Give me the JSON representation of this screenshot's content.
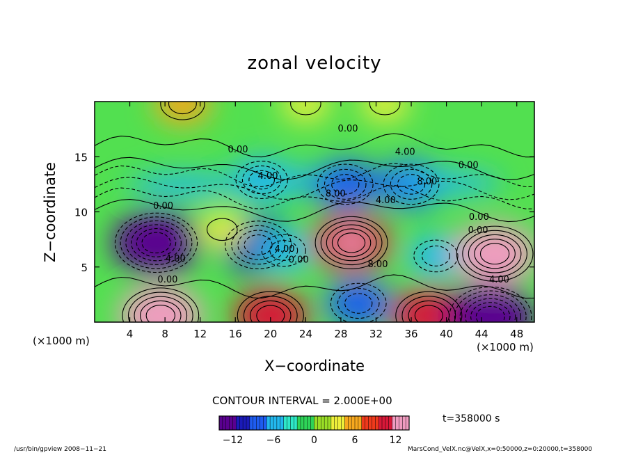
{
  "chart_data": {
    "type": "contour",
    "title": "zonal velocity",
    "xlabel": "X−coordinate",
    "ylabel": "Z−coordinate",
    "x_unit_left": "(×1000 m)",
    "x_unit_right": "(×1000 m)",
    "xlim": [
      0,
      50
    ],
    "ylim": [
      0,
      20
    ],
    "x_ticks": [
      4,
      8,
      12,
      16,
      20,
      24,
      28,
      32,
      36,
      40,
      44,
      48
    ],
    "y_ticks": [
      5,
      10,
      15
    ],
    "contour_interval_text": "CONTOUR INTERVAL = 2.000E+00",
    "contour_interval": 2.0,
    "colorbar": {
      "range": [
        -14,
        14
      ],
      "ticks": [
        -12,
        -6,
        0,
        6,
        12
      ],
      "tick_labels": [
        "−12",
        "−6",
        "0",
        "6",
        "12"
      ],
      "colors": [
        "#5a0090",
        "#1a1ab8",
        "#1e5cf0",
        "#22b8ee",
        "#2ee8c8",
        "#2ed458",
        "#9ade26",
        "#eef03a",
        "#f7a81e",
        "#ef3a1c",
        "#d81838",
        "#f09cc0"
      ]
    },
    "contour_labels": [
      {
        "text": "0.00",
        "x": 28.8,
        "z": 17.6
      },
      {
        "text": "0.00",
        "x": 16.3,
        "z": 15.7
      },
      {
        "text": "4.00",
        "x": 35.3,
        "z": 15.5
      },
      {
        "text": "0.00",
        "x": 42.5,
        "z": 14.3
      },
      {
        "text": "4.00",
        "x": 19.7,
        "z": 13.3
      },
      {
        "text": "8.00",
        "x": 37.8,
        "z": 12.8
      },
      {
        "text": "8.00",
        "x": 27.4,
        "z": 11.7
      },
      {
        "text": "4.00",
        "x": 33.1,
        "z": 11.1
      },
      {
        "text": "0.00",
        "x": 7.8,
        "z": 10.6
      },
      {
        "text": "0.00",
        "x": 43.7,
        "z": 9.6
      },
      {
        "text": "0.00",
        "x": 43.6,
        "z": 8.4
      },
      {
        "text": "4.00",
        "x": 21.6,
        "z": 6.7
      },
      {
        "text": "8.00",
        "x": 32.2,
        "z": 5.3
      },
      {
        "text": "4.00",
        "x": 9.2,
        "z": 5.8
      },
      {
        "text": "0.00",
        "x": 23.2,
        "z": 5.7
      },
      {
        "text": "0.00",
        "x": 8.3,
        "z": 3.9
      },
      {
        "text": "4.00",
        "x": 46.0,
        "z": 3.9
      }
    ],
    "velocity_extrema": [
      {
        "x": 7.0,
        "z": 7.2,
        "value": -13
      },
      {
        "x": 18.6,
        "z": 7.0,
        "value": -10
      },
      {
        "x": 21.5,
        "z": 6.5,
        "value": -6
      },
      {
        "x": 38.8,
        "z": 6.0,
        "value": -6
      },
      {
        "x": 36.0,
        "z": 12.5,
        "value": -8
      },
      {
        "x": 19.0,
        "z": 12.9,
        "value": -7
      },
      {
        "x": 28.5,
        "z": 12.5,
        "value": -8
      },
      {
        "x": 29.2,
        "z": 7.2,
        "value": 11
      },
      {
        "x": 45.5,
        "z": 6.2,
        "value": 12
      },
      {
        "x": 7.5,
        "z": 0.6,
        "value": 12
      },
      {
        "x": 20.0,
        "z": 0.6,
        "value": 10
      },
      {
        "x": 38.0,
        "z": 0.6,
        "value": 10
      },
      {
        "x": 45.0,
        "z": 0.5,
        "value": -13
      },
      {
        "x": 30.0,
        "z": 1.7,
        "value": -8
      },
      {
        "x": 14.5,
        "z": 8.4,
        "value": 4
      },
      {
        "x": 10.0,
        "z": 19.8,
        "value": 6
      },
      {
        "x": 24.0,
        "z": 19.8,
        "value": 4
      },
      {
        "x": 33.0,
        "z": 19.8,
        "value": 4
      }
    ]
  },
  "time_label": "t=358000  s",
  "footer_left": "/usr/bin/gpview  2008−11−21",
  "footer_right": "MarsCond_VelX.nc@VelX,x=0:50000,z=0:20000,t=358000"
}
